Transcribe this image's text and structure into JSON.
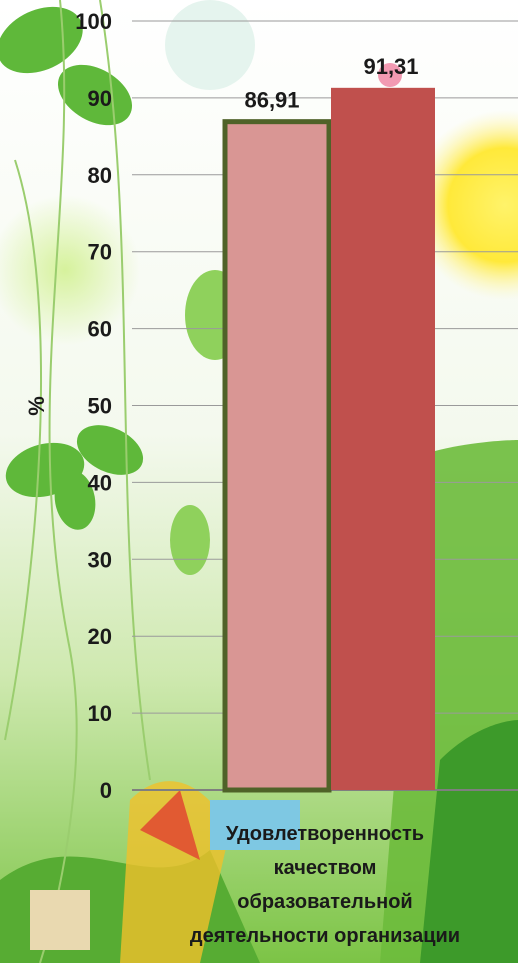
{
  "chart_data": {
    "type": "bar",
    "categories": [
      "Удовлетворенность качеством образовательной деятельности организации"
    ],
    "category_label_lines": [
      "Удовлетворенность",
      "качеством",
      "образовательной",
      "деятельности организации"
    ],
    "series": [
      {
        "values": [
          86.91
        ],
        "label": "86,91",
        "color": "#d99694",
        "border": "#4f6228"
      },
      {
        "values": [
          91.31
        ],
        "label": "91,31",
        "color": "#c0504d"
      }
    ],
    "ylabel": "%",
    "ylim": [
      0,
      100
    ],
    "yticks": [
      0,
      10,
      20,
      30,
      40,
      50,
      60,
      70,
      80,
      90,
      100
    ],
    "grid": true
  }
}
